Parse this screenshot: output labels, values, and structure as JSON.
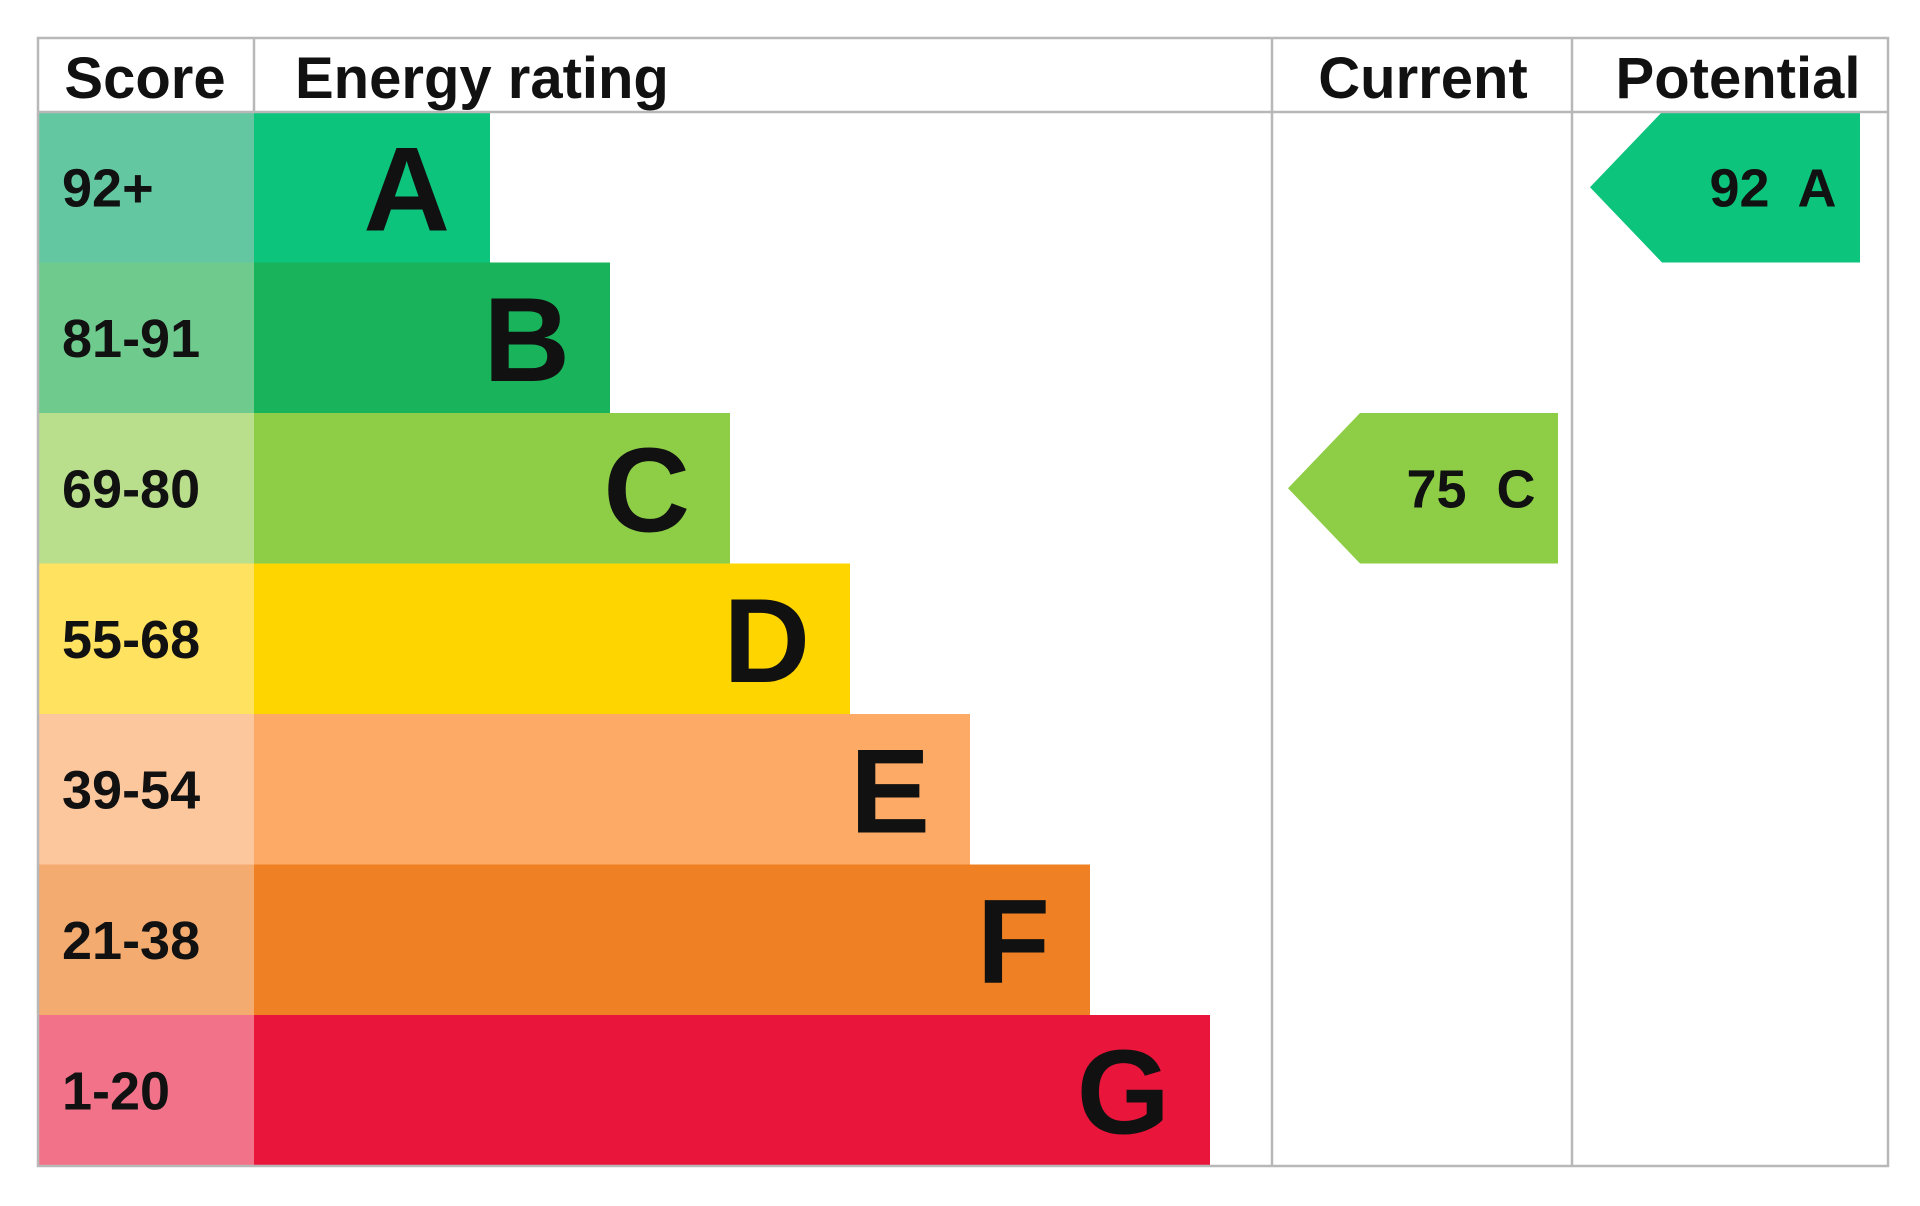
{
  "chart_data": {
    "type": "bar",
    "headers": {
      "score": "Score",
      "rating": "Energy rating",
      "current": "Current",
      "potential": "Potential"
    },
    "bands": [
      {
        "letter": "A",
        "range": "92+",
        "bar_color": "#0cc47c",
        "score_color": "#63c8a1"
      },
      {
        "letter": "B",
        "range": "81-91",
        "bar_color": "#19b35b",
        "score_color": "#6fca8e"
      },
      {
        "letter": "C",
        "range": "69-80",
        "bar_color": "#8dce46",
        "score_color": "#b9df8c"
      },
      {
        "letter": "D",
        "range": "55-68",
        "bar_color": "#ffd500",
        "score_color": "#ffe360"
      },
      {
        "letter": "E",
        "range": "39-54",
        "bar_color": "#fcaa65",
        "score_color": "#fdc79d"
      },
      {
        "letter": "F",
        "range": "21-38",
        "bar_color": "#ef8023",
        "score_color": "#f4ab70"
      },
      {
        "letter": "G",
        "range": "1-20",
        "bar_color": "#e9153b",
        "score_color": "#f27389"
      }
    ],
    "current": {
      "value": 75,
      "letter": "C",
      "label": "75  C",
      "color": "#8dce46"
    },
    "potential": {
      "value": 92,
      "letter": "A",
      "label": "92  A",
      "color": "#0cc47c"
    }
  }
}
